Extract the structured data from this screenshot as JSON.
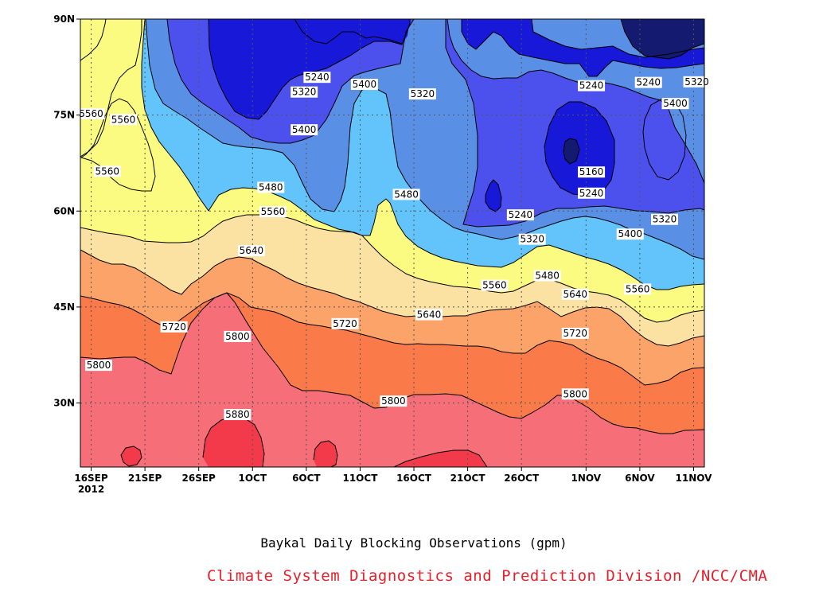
{
  "chart_data": {
    "type": "contour",
    "title": "Baykal Daily Blocking Observations (gpm)",
    "credit": "Climate System Diagnostics and Prediction Division /NCC/CMA",
    "x_ticks": [
      {
        "label": "16SEP",
        "sub": "2012",
        "day": 0
      },
      {
        "label": "21SEP",
        "day": 5
      },
      {
        "label": "26SEP",
        "day": 10
      },
      {
        "label": "1OCT",
        "day": 15
      },
      {
        "label": "6OCT",
        "day": 20
      },
      {
        "label": "11OCT",
        "day": 25
      },
      {
        "label": "16OCT",
        "day": 30
      },
      {
        "label": "21OCT",
        "day": 35
      },
      {
        "label": "26OCT",
        "day": 40
      },
      {
        "label": "1NOV",
        "day": 46
      },
      {
        "label": "6NOV",
        "day": 51
      },
      {
        "label": "11NOV",
        "day": 56
      }
    ],
    "y_ticks": [
      {
        "label": "90N",
        "lat": 90
      },
      {
        "label": "75N",
        "lat": 75
      },
      {
        "label": "60N",
        "lat": 60
      },
      {
        "label": "45N",
        "lat": 45
      },
      {
        "label": "30N",
        "lat": 30
      }
    ],
    "xlim": [
      -1,
      57
    ],
    "ylim": [
      20,
      90
    ],
    "grid": true,
    "levels": [
      5160,
      5240,
      5320,
      5400,
      5480,
      5560,
      5640,
      5720,
      5800,
      5880
    ],
    "level_colors": {
      "below_5160": "#141a70",
      "5160_5240": "#1818d8",
      "5240_5320": "#4c50ec",
      "5320_5400": "#5a8fe6",
      "5400_5480": "#62c4fa",
      "5480_5560": "#fbfb82",
      "5560_5640": "#fce2a2",
      "5640_5720": "#fca36a",
      "5720_5800": "#fa7a4a",
      "5800_5880": "#f56e78",
      "above_5880": "#f33a4a"
    },
    "contour_labels": [
      {
        "text": "5560",
        "day": 0,
        "lat": 75.2
      },
      {
        "text": "5560",
        "day": 3,
        "lat": 74.3
      },
      {
        "text": "5560",
        "day": 1.5,
        "lat": 66.2
      },
      {
        "text": "5240",
        "day": 21,
        "lat": 80.9
      },
      {
        "text": "5320",
        "day": 19.8,
        "lat": 78.6
      },
      {
        "text": "5400",
        "day": 25.4,
        "lat": 79.8
      },
      {
        "text": "5320",
        "day": 30.8,
        "lat": 78.3
      },
      {
        "text": "5400",
        "day": 19.8,
        "lat": 72.7
      },
      {
        "text": "5480",
        "day": 16.7,
        "lat": 63.7
      },
      {
        "text": "5480",
        "day": 29.3,
        "lat": 62.6
      },
      {
        "text": "5560",
        "day": 16.9,
        "lat": 59.9
      },
      {
        "text": "5640",
        "day": 14.9,
        "lat": 53.8
      },
      {
        "text": "5240",
        "day": 46.5,
        "lat": 79.6
      },
      {
        "text": "5240",
        "day": 51.8,
        "lat": 80.1
      },
      {
        "text": "5320",
        "day": 56.3,
        "lat": 80.2
      },
      {
        "text": "5400",
        "day": 54.3,
        "lat": 76.8
      },
      {
        "text": "5160",
        "day": 46.5,
        "lat": 66.1
      },
      {
        "text": "5240",
        "day": 46.5,
        "lat": 62.8
      },
      {
        "text": "5240",
        "day": 39.9,
        "lat": 59.4
      },
      {
        "text": "5320",
        "day": 41.0,
        "lat": 55.6
      },
      {
        "text": "5400",
        "day": 50.1,
        "lat": 56.4
      },
      {
        "text": "5320",
        "day": 53.3,
        "lat": 58.7
      },
      {
        "text": "5480",
        "day": 42.4,
        "lat": 49.9
      },
      {
        "text": "5560",
        "day": 37.5,
        "lat": 48.4
      },
      {
        "text": "5640",
        "day": 45.0,
        "lat": 47.0
      },
      {
        "text": "5560",
        "day": 50.8,
        "lat": 47.8
      },
      {
        "text": "5640",
        "day": 31.4,
        "lat": 43.8
      },
      {
        "text": "5720",
        "day": 7.7,
        "lat": 41.9
      },
      {
        "text": "5720",
        "day": 23.6,
        "lat": 42.4
      },
      {
        "text": "5720",
        "day": 45.0,
        "lat": 40.9
      },
      {
        "text": "5800",
        "day": 0.7,
        "lat": 35.9
      },
      {
        "text": "5800",
        "day": 13.6,
        "lat": 40.4
      },
      {
        "text": "5800",
        "day": 28.1,
        "lat": 30.3
      },
      {
        "text": "5800",
        "day": 45.0,
        "lat": 31.4
      },
      {
        "text": "5880",
        "day": 13.6,
        "lat": 28.2
      }
    ]
  }
}
